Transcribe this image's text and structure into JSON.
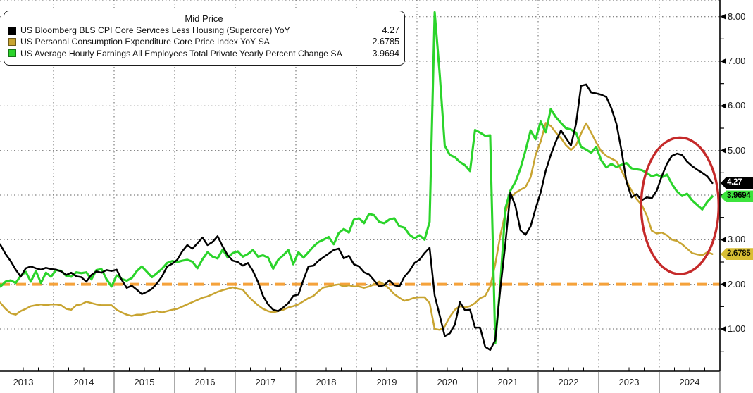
{
  "legend": {
    "title": "Mid Price",
    "series": [
      {
        "label": "US Bloomberg BLS CPI Core Services Less Housing (Supercore) YoY",
        "value": "4.27",
        "color": "#000000"
      },
      {
        "label": "US Personal Consumption Expenditure Core Price Index YoY SA",
        "value": "2.6785",
        "color": "#C8A431"
      },
      {
        "label": "US Average Hourly Earnings All Employees Total Private Yearly Percent Change SA",
        "value": "3.9694",
        "color": "#2BD42B"
      }
    ]
  },
  "chart_data": {
    "type": "line",
    "title": "Mid Price",
    "frequency": "monthly",
    "x_start": "2013-01",
    "x_end": "2024-11",
    "x_axis": {
      "year_labels": [
        "2013",
        "2014",
        "2015",
        "2016",
        "2017",
        "2018",
        "2019",
        "2020",
        "2021",
        "2022",
        "2023",
        "2024"
      ],
      "domain_years": [
        2013.116,
        2025.0
      ],
      "gridlines": "dotted-vertical-at-year-boundaries",
      "minor_tick": "quarterly"
    },
    "y_axis": {
      "side": "right",
      "tick_labels": [
        "1.00",
        "2.00",
        "3.00",
        "4.00",
        "5.00",
        "6.00",
        "7.00",
        "8.00"
      ],
      "tick_values": [
        1,
        2,
        3,
        4,
        5,
        6,
        7,
        8
      ],
      "minor_step": 0.5,
      "domain": [
        0.0526,
        8.374
      ],
      "gridlines": "dotted-horizontal"
    },
    "reference_line": {
      "value": 2.0,
      "color": "#F5A23B",
      "style": "dashed",
      "dash": [
        14,
        9
      ],
      "width": 4
    },
    "annotation": {
      "shape": "ellipse",
      "center_year": 2024.34,
      "center_value": 3.76,
      "radius_years": 0.64,
      "radius_value": 1.53,
      "color": "#C52A2A",
      "stroke_width": 3.4
    },
    "grid_color": "#606060",
    "axis_color": "#000000",
    "series": [
      {
        "name": "US Personal Consumption Expenditure Core Price Index YoY SA",
        "short_name": "core-pce",
        "color": "#C8A431",
        "width": 2.5,
        "last_value": 2.6785,
        "values": [
          1.68,
          1.58,
          1.45,
          1.35,
          1.32,
          1.4,
          1.45,
          1.51,
          1.53,
          1.55,
          1.53,
          1.55,
          1.55,
          1.53,
          1.45,
          1.43,
          1.53,
          1.55,
          1.61,
          1.58,
          1.55,
          1.53,
          1.53,
          1.53,
          1.43,
          1.37,
          1.32,
          1.29,
          1.32,
          1.32,
          1.35,
          1.37,
          1.4,
          1.37,
          1.4,
          1.43,
          1.45,
          1.5,
          1.55,
          1.6,
          1.65,
          1.7,
          1.73,
          1.78,
          1.83,
          1.87,
          1.9,
          1.93,
          1.9,
          1.88,
          1.74,
          1.63,
          1.53,
          1.45,
          1.4,
          1.37,
          1.4,
          1.43,
          1.48,
          1.51,
          1.55,
          1.62,
          1.69,
          1.74,
          1.85,
          1.93,
          1.95,
          1.98,
          2.0,
          1.95,
          1.98,
          1.95,
          1.95,
          1.92,
          1.95,
          2.0,
          2.06,
          2.0,
          1.9,
          1.78,
          1.7,
          1.63,
          1.66,
          1.7,
          1.71,
          1.71,
          1.58,
          1.0,
          0.98,
          1.06,
          1.27,
          1.43,
          1.51,
          1.48,
          1.51,
          1.58,
          1.69,
          1.74,
          1.95,
          2.45,
          3.1,
          3.6,
          3.95,
          4.05,
          4.12,
          4.18,
          4.4,
          4.9,
          5.2,
          5.62,
          5.55,
          5.4,
          5.28,
          5.12,
          5.01,
          5.12,
          5.38,
          5.61,
          5.4,
          5.18,
          4.98,
          4.88,
          4.82,
          4.76,
          4.55,
          4.32,
          4.1,
          3.91,
          3.78,
          3.55,
          3.2,
          3.14,
          3.16,
          3.1,
          3.0,
          2.97,
          2.9,
          2.8,
          2.7,
          2.67,
          2.65,
          2.72,
          2.6785
        ]
      },
      {
        "name": "US Average Hourly Earnings All Employees Total Private Yearly Percent Change SA",
        "short_name": "avg-hourly-earnings",
        "color": "#2BD42B",
        "width": 3.1,
        "last_value": 3.9694,
        "values": [
          2.17,
          1.95,
          2.06,
          2.09,
          2.03,
          2.19,
          2.28,
          2.06,
          2.3,
          2.03,
          2.26,
          2.17,
          2.32,
          2.3,
          2.19,
          2.17,
          2.27,
          2.25,
          2.27,
          2.11,
          2.32,
          2.34,
          2.11,
          1.95,
          2.2,
          2.12,
          2.08,
          2.14,
          2.3,
          2.4,
          2.28,
          2.16,
          2.25,
          2.35,
          2.48,
          2.52,
          2.5,
          2.53,
          2.55,
          2.51,
          2.36,
          2.56,
          2.72,
          2.62,
          2.58,
          2.78,
          2.6,
          2.7,
          2.74,
          2.62,
          2.68,
          2.77,
          2.62,
          2.65,
          2.6,
          2.35,
          2.55,
          2.65,
          2.77,
          2.45,
          2.72,
          2.6,
          2.72,
          2.85,
          2.95,
          3.0,
          3.06,
          2.9,
          3.15,
          3.24,
          3.16,
          3.45,
          3.48,
          3.37,
          3.58,
          3.55,
          3.4,
          3.37,
          3.45,
          3.48,
          3.3,
          3.27,
          3.11,
          3.03,
          3.1,
          3.0,
          3.4,
          8.1,
          6.7,
          5.11,
          4.9,
          4.85,
          4.74,
          4.67,
          4.54,
          5.46,
          5.4,
          5.33,
          5.34,
          0.68,
          2.0,
          3.7,
          4.1,
          4.3,
          4.6,
          5.0,
          5.45,
          5.25,
          5.65,
          5.41,
          5.93,
          5.75,
          5.62,
          5.5,
          5.47,
          5.4,
          5.08,
          5.02,
          4.95,
          5.08,
          4.78,
          4.62,
          4.7,
          4.63,
          4.68,
          4.72,
          4.6,
          4.58,
          4.56,
          4.5,
          4.42,
          4.46,
          4.4,
          4.46,
          4.25,
          4.08,
          3.98,
          4.03,
          3.88,
          3.78,
          3.68,
          3.85,
          3.9694
        ]
      },
      {
        "name": "US Bloomberg BLS CPI Core Services Less Housing (Supercore) YoY",
        "short_name": "cpi-supercore",
        "color": "#000000",
        "width": 2.5,
        "last_value": 4.27,
        "values": [
          3.0,
          2.88,
          2.68,
          2.52,
          2.33,
          2.17,
          2.36,
          2.4,
          2.36,
          2.33,
          2.37,
          2.34,
          2.33,
          2.29,
          2.21,
          2.26,
          2.18,
          2.16,
          2.06,
          2.21,
          2.29,
          2.26,
          2.32,
          2.3,
          2.33,
          2.1,
          1.92,
          1.97,
          1.88,
          1.78,
          1.83,
          1.9,
          2.02,
          2.18,
          2.4,
          2.46,
          2.55,
          2.74,
          2.88,
          2.8,
          2.92,
          3.05,
          2.88,
          2.95,
          3.08,
          2.85,
          2.65,
          2.53,
          2.5,
          2.42,
          2.48,
          2.3,
          2.05,
          1.74,
          1.55,
          1.43,
          1.4,
          1.48,
          1.58,
          1.74,
          1.77,
          2.1,
          2.4,
          2.42,
          2.53,
          2.61,
          2.69,
          2.77,
          2.8,
          2.58,
          2.64,
          2.45,
          2.4,
          2.27,
          2.22,
          2.09,
          1.95,
          1.98,
          2.09,
          1.98,
          1.95,
          2.17,
          2.3,
          2.48,
          2.55,
          2.7,
          2.82,
          1.75,
          1.3,
          0.84,
          0.9,
          1.1,
          1.6,
          1.42,
          1.43,
          1.03,
          1.03,
          0.6,
          0.53,
          0.75,
          1.9,
          2.9,
          4.05,
          3.75,
          3.21,
          3.11,
          3.3,
          3.7,
          4.06,
          4.55,
          4.9,
          5.2,
          5.45,
          5.28,
          5.11,
          5.6,
          6.45,
          6.48,
          6.3,
          6.28,
          6.25,
          6.2,
          5.95,
          5.6,
          5.0,
          4.3,
          3.95,
          4.02,
          3.88,
          3.95,
          3.93,
          4.1,
          4.43,
          4.7,
          4.88,
          4.93,
          4.9,
          4.75,
          4.65,
          4.57,
          4.5,
          4.42,
          4.27
        ]
      }
    ],
    "last_value_tags": [
      {
        "text": "4.27",
        "value": 4.27,
        "bg": "#000000",
        "fg": "#ffffff"
      },
      {
        "text": "3.9694",
        "value": 3.9694,
        "bg": "#3CE43C",
        "fg": "#000000"
      },
      {
        "text": "2.6785",
        "value": 2.6785,
        "bg": "#D8BE33",
        "fg": "#111100"
      }
    ]
  }
}
